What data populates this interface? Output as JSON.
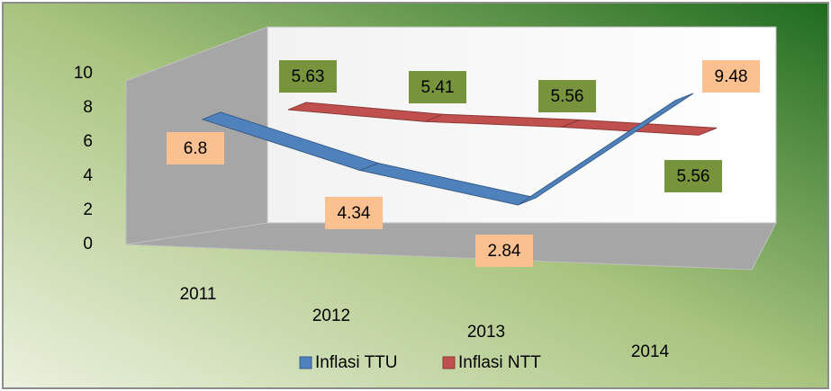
{
  "chart_data": {
    "type": "line3d",
    "categories": [
      "2011",
      "2012",
      "2013",
      "2014"
    ],
    "series": [
      {
        "name": "Inflasi TTU",
        "color": "#4f81bd",
        "label_color": "#fac090",
        "values": [
          6.8,
          4.34,
          2.84,
          9.48
        ]
      },
      {
        "name": "Inflasi NTT",
        "color": "#c0504d",
        "label_color": "#77933c",
        "values": [
          5.63,
          5.41,
          5.56,
          5.56
        ]
      }
    ],
    "ylim": [
      0,
      10
    ],
    "yticks": [
      0,
      2,
      4,
      6,
      8,
      10
    ],
    "legend": "bottom"
  }
}
